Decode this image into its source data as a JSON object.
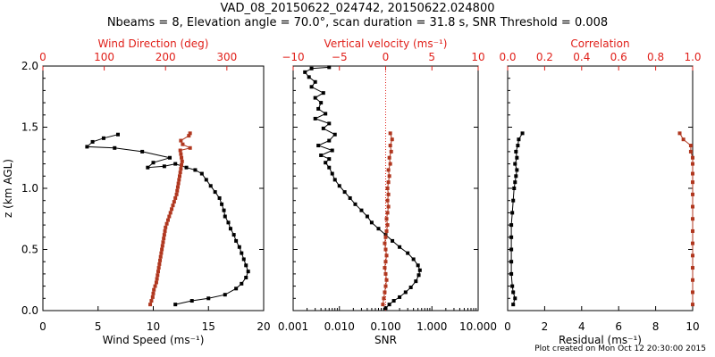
{
  "title_line1": "VAD_08_20150622_024742, 20150622.024800",
  "title_line2": "Nbeams = 8, Elevation angle = 70.0°, scan duration = 31.8 s, SNR Threshold = 0.008",
  "footer": "Plot created on Mon Oct 12 20:30:00 2015",
  "colors": {
    "primary": "#000000",
    "secondary": "#b0371f",
    "top_axis": "#e0201a"
  },
  "chart_data": [
    {
      "type": "line",
      "panel": "wind",
      "ylabel": "z (km AGL)",
      "ylim": [
        0,
        2
      ],
      "yticks": [
        "0.0",
        "0.5",
        "1.0",
        "1.5",
        "2.0"
      ],
      "xlabel": "Wind Speed (ms⁻¹)",
      "xlim": [
        0,
        20
      ],
      "xticks": [
        "0",
        "5",
        "10",
        "15",
        "20"
      ],
      "top_label": "Wind Direction (deg)",
      "top_lim": [
        0,
        360
      ],
      "top_ticks": [
        "0",
        "100",
        "200",
        "300"
      ],
      "series": [
        {
          "axis": "bottom",
          "color": "#000000",
          "points": [
            [
              12.0,
              0.05
            ],
            [
              13.5,
              0.08
            ],
            [
              15.0,
              0.1
            ],
            [
              16.5,
              0.13
            ],
            [
              17.5,
              0.18
            ],
            [
              18.0,
              0.22
            ],
            [
              18.4,
              0.27
            ],
            [
              18.6,
              0.32
            ],
            [
              18.4,
              0.37
            ],
            [
              18.2,
              0.42
            ],
            [
              18.0,
              0.47
            ],
            [
              17.8,
              0.52
            ],
            [
              17.5,
              0.57
            ],
            [
              17.3,
              0.62
            ],
            [
              17.0,
              0.67
            ],
            [
              16.8,
              0.72
            ],
            [
              16.5,
              0.77
            ],
            [
              16.4,
              0.82
            ],
            [
              16.2,
              0.87
            ],
            [
              16.0,
              0.92
            ],
            [
              15.6,
              0.97
            ],
            [
              15.2,
              1.02
            ],
            [
              14.8,
              1.07
            ],
            [
              14.4,
              1.12
            ],
            [
              13.8,
              1.15
            ],
            [
              13.0,
              1.17
            ],
            [
              12.0,
              1.2
            ],
            [
              11.0,
              1.18
            ],
            [
              9.5,
              1.17
            ],
            [
              10.0,
              1.21
            ],
            [
              11.5,
              1.25
            ],
            [
              9.0,
              1.3
            ],
            [
              6.5,
              1.33
            ],
            [
              4.0,
              1.34
            ],
            [
              4.5,
              1.38
            ],
            [
              5.5,
              1.41
            ],
            [
              6.8,
              1.44
            ]
          ]
        },
        {
          "axis": "top",
          "color": "#b0371f",
          "points": [
            [
              175,
              0.05
            ],
            [
              177,
              0.08
            ],
            [
              179,
              0.11
            ],
            [
              180,
              0.14
            ],
            [
              181,
              0.17
            ],
            [
              183,
              0.2
            ],
            [
              185,
              0.23
            ],
            [
              186,
              0.26
            ],
            [
              187,
              0.29
            ],
            [
              188,
              0.32
            ],
            [
              189,
              0.35
            ],
            [
              190,
              0.38
            ],
            [
              191,
              0.41
            ],
            [
              192,
              0.44
            ],
            [
              193,
              0.47
            ],
            [
              194,
              0.5
            ],
            [
              195,
              0.53
            ],
            [
              196,
              0.56
            ],
            [
              197,
              0.59
            ],
            [
              198,
              0.62
            ],
            [
              199,
              0.65
            ],
            [
              200,
              0.68
            ],
            [
              202,
              0.71
            ],
            [
              204,
              0.74
            ],
            [
              206,
              0.77
            ],
            [
              208,
              0.8
            ],
            [
              210,
              0.83
            ],
            [
              212,
              0.86
            ],
            [
              214,
              0.89
            ],
            [
              216,
              0.92
            ],
            [
              218,
              0.95
            ],
            [
              219,
              0.98
            ],
            [
              220,
              1.01
            ],
            [
              221,
              1.04
            ],
            [
              222,
              1.07
            ],
            [
              223,
              1.1
            ],
            [
              224,
              1.13
            ],
            [
              225,
              1.16
            ],
            [
              226,
              1.19
            ],
            [
              227,
              1.22
            ],
            [
              226,
              1.25
            ],
            [
              225,
              1.28
            ],
            [
              224,
              1.31
            ],
            [
              240,
              1.33
            ],
            [
              228,
              1.36
            ],
            [
              225,
              1.39
            ],
            [
              238,
              1.43
            ],
            [
              240,
              1.45
            ]
          ]
        }
      ]
    },
    {
      "type": "line",
      "panel": "snr",
      "xlabel": "SNR",
      "xscale": "log",
      "xlim": [
        0.001,
        10
      ],
      "xticks": [
        "0.001",
        "0.010",
        "0.100",
        "1.000",
        "10.000"
      ],
      "top_label": "Vertical velocity (ms⁻¹)",
      "top_lim": [
        -10,
        10
      ],
      "top_ticks": [
        "−10",
        "−5",
        "0",
        "5",
        "10"
      ],
      "ylim": [
        0,
        2
      ],
      "series": [
        {
          "axis": "bottom",
          "color": "#000000",
          "points": [
            [
              0.1,
              0.02
            ],
            [
              0.12,
              0.05
            ],
            [
              0.15,
              0.08
            ],
            [
              0.2,
              0.11
            ],
            [
              0.27,
              0.15
            ],
            [
              0.35,
              0.19
            ],
            [
              0.45,
              0.24
            ],
            [
              0.52,
              0.29
            ],
            [
              0.55,
              0.33
            ],
            [
              0.5,
              0.37
            ],
            [
              0.4,
              0.42
            ],
            [
              0.3,
              0.47
            ],
            [
              0.2,
              0.52
            ],
            [
              0.14,
              0.57
            ],
            [
              0.1,
              0.62
            ],
            [
              0.07,
              0.67
            ],
            [
              0.05,
              0.72
            ],
            [
              0.04,
              0.77
            ],
            [
              0.03,
              0.82
            ],
            [
              0.022,
              0.87
            ],
            [
              0.017,
              0.92
            ],
            [
              0.013,
              0.97
            ],
            [
              0.01,
              1.02
            ],
            [
              0.008,
              1.07
            ],
            [
              0.007,
              1.12
            ],
            [
              0.006,
              1.17
            ],
            [
              0.005,
              1.21
            ],
            [
              0.006,
              1.24
            ],
            [
              0.004,
              1.27
            ],
            [
              0.007,
              1.31
            ],
            [
              0.0035,
              1.35
            ],
            [
              0.006,
              1.39
            ],
            [
              0.008,
              1.44
            ],
            [
              0.0045,
              1.49
            ],
            [
              0.006,
              1.53
            ],
            [
              0.003,
              1.57
            ],
            [
              0.005,
              1.61
            ],
            [
              0.0035,
              1.65
            ],
            [
              0.004,
              1.7
            ],
            [
              0.003,
              1.74
            ],
            [
              0.0045,
              1.78
            ],
            [
              0.0025,
              1.83
            ],
            [
              0.003,
              1.87
            ],
            [
              0.0022,
              1.91
            ],
            [
              0.0018,
              1.95
            ],
            [
              0.0025,
              1.98
            ],
            [
              0.006,
              1.99
            ]
          ]
        },
        {
          "axis": "top",
          "color": "#b0371f",
          "points": [
            [
              -0.3,
              0.05
            ],
            [
              -0.2,
              0.1
            ],
            [
              -0.1,
              0.15
            ],
            [
              0.0,
              0.2
            ],
            [
              0.1,
              0.25
            ],
            [
              0.0,
              0.3
            ],
            [
              -0.1,
              0.35
            ],
            [
              0.0,
              0.4
            ],
            [
              0.1,
              0.45
            ],
            [
              0.0,
              0.5
            ],
            [
              -0.1,
              0.55
            ],
            [
              0.0,
              0.6
            ],
            [
              0.1,
              0.65
            ],
            [
              0.2,
              0.7
            ],
            [
              0.1,
              0.75
            ],
            [
              0.2,
              0.8
            ],
            [
              0.3,
              0.85
            ],
            [
              0.2,
              0.9
            ],
            [
              0.3,
              0.95
            ],
            [
              0.2,
              1.0
            ],
            [
              0.3,
              1.05
            ],
            [
              0.4,
              1.1
            ],
            [
              0.3,
              1.15
            ],
            [
              0.5,
              1.2
            ],
            [
              0.4,
              1.25
            ],
            [
              0.6,
              1.3
            ],
            [
              0.5,
              1.35
            ],
            [
              0.7,
              1.4
            ],
            [
              0.5,
              1.45
            ]
          ]
        }
      ]
    },
    {
      "type": "line",
      "panel": "residual",
      "xlabel": "Residual (ms⁻¹)",
      "xlim": [
        0,
        10
      ],
      "xticks": [
        "0",
        "2",
        "4",
        "6",
        "8",
        "10"
      ],
      "top_label": "Correlation",
      "top_lim": [
        0,
        1
      ],
      "top_ticks": [
        "0.0",
        "0.2",
        "0.4",
        "0.6",
        "0.8",
        "1.0"
      ],
      "ylim": [
        0,
        2
      ],
      "series": [
        {
          "axis": "bottom",
          "color": "#000000",
          "points": [
            [
              0.3,
              0.05
            ],
            [
              0.4,
              0.1
            ],
            [
              0.3,
              0.15
            ],
            [
              0.25,
              0.2
            ],
            [
              0.2,
              0.3
            ],
            [
              0.2,
              0.4
            ],
            [
              0.2,
              0.5
            ],
            [
              0.2,
              0.6
            ],
            [
              0.2,
              0.7
            ],
            [
              0.25,
              0.8
            ],
            [
              0.3,
              0.9
            ],
            [
              0.35,
              1.0
            ],
            [
              0.4,
              1.05
            ],
            [
              0.45,
              1.1
            ],
            [
              0.5,
              1.15
            ],
            [
              0.4,
              1.2
            ],
            [
              0.5,
              1.25
            ],
            [
              0.45,
              1.3
            ],
            [
              0.55,
              1.35
            ],
            [
              0.6,
              1.4
            ],
            [
              0.8,
              1.45
            ]
          ]
        },
        {
          "axis": "top",
          "color": "#b0371f",
          "points": [
            [
              1.0,
              0.05
            ],
            [
              1.0,
              0.15
            ],
            [
              1.0,
              0.25
            ],
            [
              1.0,
              0.35
            ],
            [
              1.0,
              0.45
            ],
            [
              1.0,
              0.55
            ],
            [
              1.0,
              0.65
            ],
            [
              1.0,
              0.75
            ],
            [
              1.0,
              0.85
            ],
            [
              1.0,
              0.95
            ],
            [
              1.0,
              1.05
            ],
            [
              1.0,
              1.12
            ],
            [
              1.0,
              1.2
            ],
            [
              1.0,
              1.25
            ],
            [
              0.99,
              1.3
            ],
            [
              0.99,
              1.35
            ],
            [
              0.95,
              1.4
            ],
            [
              0.93,
              1.45
            ]
          ]
        }
      ]
    }
  ]
}
